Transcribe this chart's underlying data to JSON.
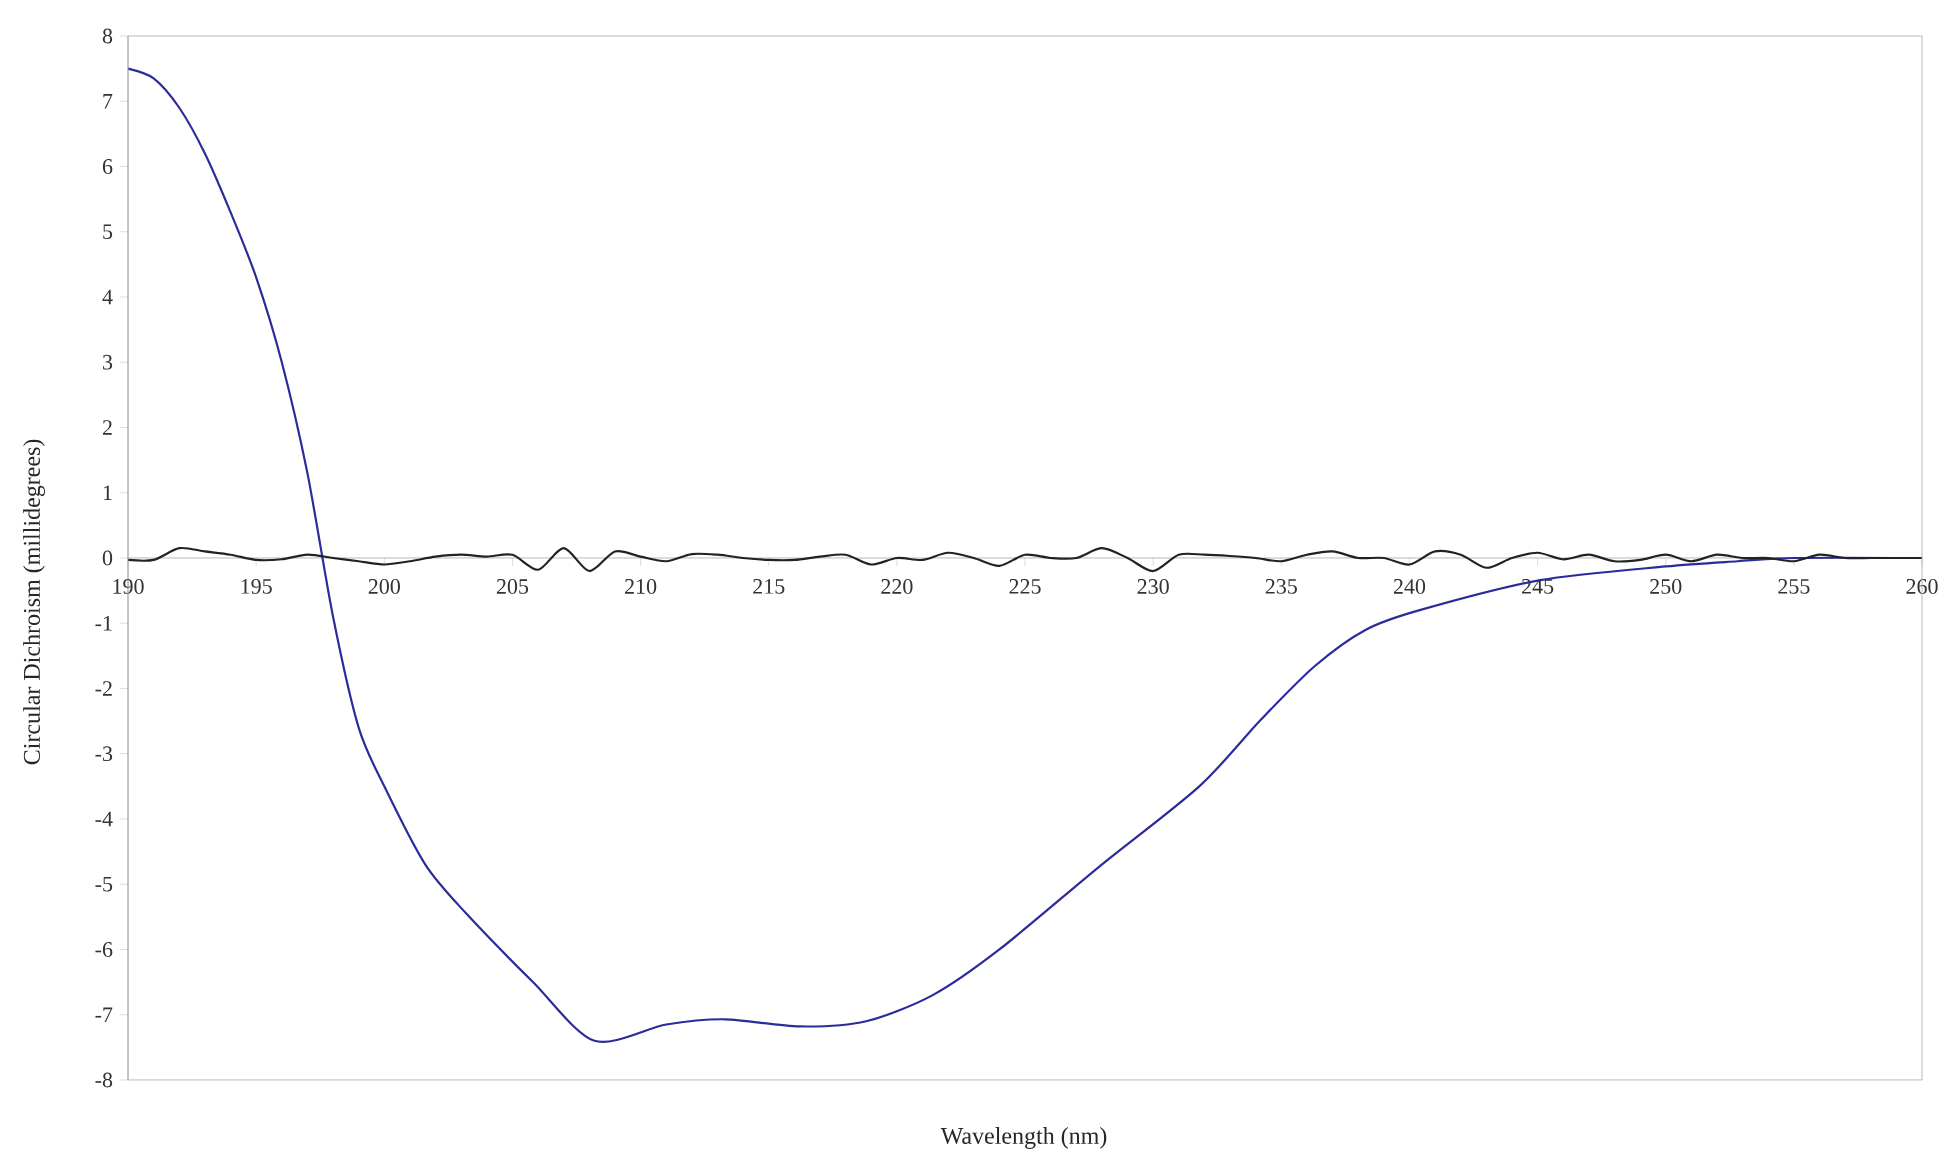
{
  "chart_data": {
    "type": "line",
    "xlabel": "Wavelength (nm)",
    "ylabel": "Circular Dichroism (millidegrees)",
    "xlim": [
      190,
      260
    ],
    "ylim": [
      -8,
      8
    ],
    "xticks": [
      190,
      195,
      200,
      205,
      210,
      215,
      220,
      225,
      230,
      235,
      240,
      245,
      250,
      255,
      260
    ],
    "yticks": [
      -8,
      -7,
      -6,
      -5,
      -4,
      -3,
      -2,
      -1,
      0,
      1,
      2,
      3,
      4,
      5,
      6,
      7,
      8
    ],
    "grid": false,
    "series": [
      {
        "color": "#2b2b9a",
        "x": [
          190,
          191,
          192,
          193,
          194,
          195,
          196,
          197,
          198,
          199,
          200,
          201.6,
          203.2,
          205.8,
          208.2,
          211,
          213.3,
          216.2,
          218.8,
          221.4,
          224,
          227.9,
          231.8,
          234.2,
          236.3,
          238.3,
          240.4,
          245.1,
          250,
          252.8,
          255,
          260
        ],
        "values": [
          7.5,
          7.35,
          6.9,
          6.2,
          5.3,
          4.3,
          3.0,
          1.3,
          -0.9,
          -2.6,
          -3.5,
          -4.7,
          -5.45,
          -6.5,
          -7.4,
          -7.15,
          -7.07,
          -7.18,
          -7.1,
          -6.7,
          -6.0,
          -4.73,
          -3.5,
          -2.48,
          -1.66,
          -1.1,
          -0.8,
          -0.34,
          -0.13,
          -0.05,
          0,
          0
        ]
      },
      {
        "color": "#222222",
        "x": [
          190,
          191,
          192,
          193,
          194,
          195,
          196,
          197,
          198,
          199,
          200,
          201,
          202,
          203,
          204,
          205,
          206,
          207,
          208,
          209,
          210,
          211,
          212,
          213,
          214,
          215,
          216,
          217,
          218,
          219,
          220,
          221,
          222,
          223,
          224,
          225,
          226,
          227,
          228,
          229,
          230,
          231,
          232,
          233,
          234,
          235,
          236,
          237,
          238,
          239,
          240,
          241,
          242,
          243,
          244,
          245,
          246,
          247,
          248,
          249,
          250,
          251,
          252,
          253,
          254,
          255,
          256,
          257,
          258,
          259,
          260
        ],
        "values": [
          -0.03,
          -0.03,
          0.15,
          0.1,
          0.05,
          -0.03,
          -0.02,
          0.05,
          0.0,
          -0.05,
          -0.1,
          -0.05,
          0.02,
          0.05,
          0.02,
          0.05,
          -0.18,
          0.15,
          -0.2,
          0.1,
          0.02,
          -0.05,
          0.06,
          0.05,
          0.0,
          -0.03,
          -0.03,
          0.02,
          0.05,
          -0.1,
          0.0,
          -0.03,
          0.08,
          0.0,
          -0.12,
          0.05,
          0.0,
          0.0,
          0.15,
          0.0,
          -0.2,
          0.05,
          0.05,
          0.03,
          0.0,
          -0.05,
          0.05,
          0.1,
          0.0,
          0.0,
          -0.1,
          0.1,
          0.05,
          -0.15,
          0.0,
          0.08,
          -0.02,
          0.05,
          -0.05,
          -0.03,
          0.05,
          -0.05,
          0.05,
          0.0,
          0.0,
          -0.05,
          0.05,
          0.0,
          0.0,
          0.0,
          0.0
        ]
      }
    ]
  }
}
